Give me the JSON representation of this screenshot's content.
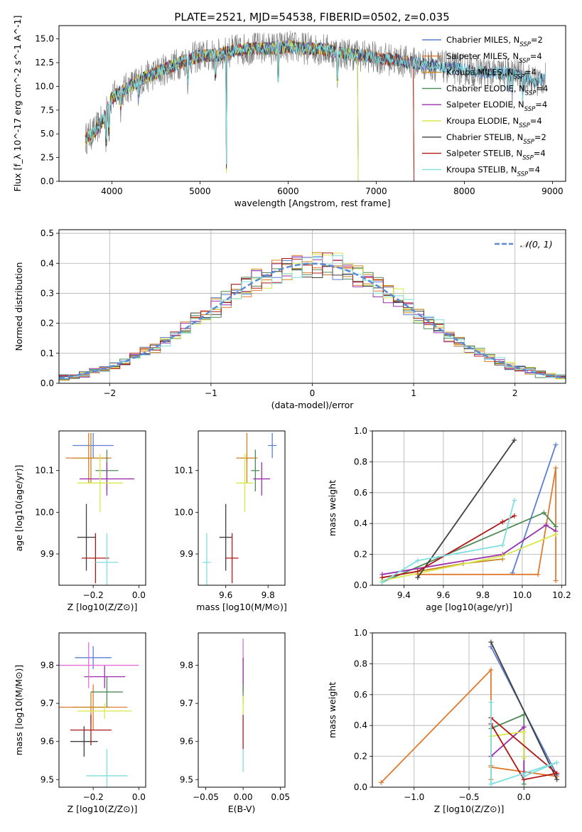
{
  "figure": {
    "title": "PLATE=2521, MJD=54538, FIBERID=0502, z=0.035"
  },
  "series": [
    {
      "name": "Chabrier MILES",
      "nssp": "2",
      "color": "#5b7fd6"
    },
    {
      "name": "Salpeter MILES",
      "nssp": "4",
      "color": "#e07a2f"
    },
    {
      "name": "Kroupa MILES",
      "nssp": "4",
      "color": "#c8861c"
    },
    {
      "name": "Chabrier ELODIE",
      "nssp": "4",
      "color": "#4e8a58"
    },
    {
      "name": "Salpeter ELODIE",
      "nssp": "4",
      "color": "#9b2fae"
    },
    {
      "name": "Kroupa ELODIE",
      "nssp": "4",
      "color": "#d8e848"
    },
    {
      "name": "Chabrier STELIB",
      "nssp": "2",
      "color": "#404040"
    },
    {
      "name": "Salpeter STELIB",
      "nssp": "4",
      "color": "#b01818"
    },
    {
      "name": "Kroupa STELIB",
      "nssp": "4",
      "color": "#7fdede"
    }
  ],
  "chart_data": [
    {
      "id": "spectrum",
      "type": "line",
      "xlabel": "wavelength [Angstrom, rest frame]",
      "ylabel": "Flux [f_λ 10^-17 erg cm^-2 s^-1 A^-1]",
      "xlim": [
        3400,
        9150
      ],
      "ylim": [
        0,
        16.4
      ],
      "xticks": [
        4000,
        5000,
        6000,
        7000,
        8000,
        9000
      ],
      "yticks": [
        0.0,
        2.5,
        5.0,
        7.5,
        10.0,
        12.5,
        15.0
      ],
      "legend": "right",
      "continuum": [
        [
          3700,
          4.5
        ],
        [
          3800,
          5.2
        ],
        [
          3900,
          6.5
        ],
        [
          4000,
          8.8
        ],
        [
          4200,
          10.0
        ],
        [
          4400,
          11.0
        ],
        [
          4600,
          11.8
        ],
        [
          4800,
          12.6
        ],
        [
          5000,
          13.2
        ],
        [
          5200,
          13.3
        ],
        [
          5400,
          13.8
        ],
        [
          5600,
          14.0
        ],
        [
          5800,
          14.0
        ],
        [
          6000,
          14.2
        ],
        [
          6200,
          14.0
        ],
        [
          6400,
          13.9
        ],
        [
          6600,
          13.5
        ],
        [
          6800,
          13.3
        ],
        [
          7000,
          13.0
        ],
        [
          7200,
          12.8
        ],
        [
          7400,
          12.5
        ],
        [
          7600,
          12.3
        ],
        [
          7800,
          12.0
        ],
        [
          8000,
          11.8
        ],
        [
          8200,
          11.5
        ],
        [
          8400,
          11.4
        ],
        [
          8600,
          11.3
        ],
        [
          8800,
          10.5
        ],
        [
          8900,
          10.8
        ]
      ],
      "cutoffs": {
        "Kroupa ELODIE": 6790,
        "Salpeter STELIB": 7420,
        "Salpeter MILES": 7420,
        "Kroupa MILES": 7420,
        "Chabrier ELODIE": 6790,
        "Salpeter ELODIE": 6790
      }
    },
    {
      "id": "residuals",
      "type": "line",
      "xlabel": "(data-model)/error",
      "ylabel": "Normed distribution",
      "xlim": [
        -2.5,
        2.5
      ],
      "ylim": [
        0,
        0.512
      ],
      "xticks": [
        -2,
        -1,
        0,
        1,
        2
      ],
      "yticks": [
        0.0,
        0.1,
        0.2,
        0.3,
        0.4,
        0.5
      ],
      "grid": true,
      "legend": "top-right",
      "curve_label": "𝒩(0, 1)",
      "curve_color": "#5b8ad6"
    },
    {
      "id": "z-age",
      "type": "scatter",
      "xlabel": "Z [log10(Z/Z⊙)]",
      "ylabel": "age [log10(age/yr)]",
      "xlim": [
        -0.35,
        0.03
      ],
      "ylim": [
        9.825,
        10.195
      ],
      "xticks": [
        -0.2,
        0.0
      ],
      "yticks": [
        9.9,
        10.0,
        10.1
      ],
      "points": [
        {
          "s": 0,
          "x": -0.2,
          "y": 10.16,
          "ex": 0.09,
          "ey": 0.03
        },
        {
          "s": 1,
          "x": -0.22,
          "y": 10.13,
          "ex": 0.1,
          "ey": 0.06
        },
        {
          "s": 2,
          "x": -0.21,
          "y": 10.13,
          "ex": 0.08,
          "ey": 0.06
        },
        {
          "s": 3,
          "x": -0.14,
          "y": 10.1,
          "ex": 0.05,
          "ey": 0.05
        },
        {
          "s": 4,
          "x": -0.14,
          "y": 10.08,
          "ex": 0.12,
          "ey": 0.04
        },
        {
          "s": 5,
          "x": -0.17,
          "y": 10.07,
          "ex": 0.1,
          "ey": 0.07
        },
        {
          "s": 6,
          "x": -0.23,
          "y": 9.94,
          "ex": 0.04,
          "ey": 0.08
        },
        {
          "s": 7,
          "x": -0.19,
          "y": 9.89,
          "ex": 0.06,
          "ey": 0.06
        },
        {
          "s": 8,
          "x": -0.14,
          "y": 9.88,
          "ex": 0.05,
          "ey": 0.07
        }
      ]
    },
    {
      "id": "mass-age",
      "type": "scatter",
      "xlabel": "mass [log10(M/M⊙)]",
      "ylabel": "",
      "xlim": [
        9.47,
        9.88
      ],
      "ylim": [
        9.825,
        10.195
      ],
      "xticks": [
        9.6,
        9.8
      ],
      "yticks": [
        9.9,
        10.0,
        10.1
      ],
      "points": [
        {
          "s": 0,
          "x": 9.82,
          "y": 10.16,
          "ex": 0.02,
          "ey": 0.03
        },
        {
          "s": 1,
          "x": 9.7,
          "y": 10.13,
          "ex": 0.05,
          "ey": 0.01
        },
        {
          "s": 2,
          "x": 9.7,
          "y": 10.13,
          "ex": 0.03,
          "ey": 0.06
        },
        {
          "s": 3,
          "x": 9.74,
          "y": 10.1,
          "ex": 0.02,
          "ey": 0.05
        },
        {
          "s": 4,
          "x": 9.77,
          "y": 10.08,
          "ex": 0.04,
          "ey": 0.04
        },
        {
          "s": 5,
          "x": 9.69,
          "y": 10.07,
          "ex": 0.04,
          "ey": 0.07
        },
        {
          "s": 6,
          "x": 9.6,
          "y": 9.94,
          "ex": 0.03,
          "ey": 0.08
        },
        {
          "s": 7,
          "x": 9.63,
          "y": 9.89,
          "ex": 0.03,
          "ey": 0.06
        },
        {
          "s": 8,
          "x": 9.51,
          "y": 9.88,
          "ex": 0.02,
          "ey": 0.07
        }
      ]
    },
    {
      "id": "age-weight",
      "type": "line",
      "xlabel": "age [log10(age/yr)]",
      "ylabel": "mass weight",
      "xlim": [
        9.24,
        10.22
      ],
      "ylim": [
        0,
        1.0
      ],
      "xticks": [
        9.4,
        9.6,
        9.8,
        10.0,
        10.2
      ],
      "yticks": [
        0.0,
        0.2,
        0.4,
        0.6,
        0.8,
        1.0
      ],
      "grid": true,
      "lines": [
        {
          "s": 0,
          "pts": [
            [
              9.95,
              0.08
            ],
            [
              10.17,
              0.91
            ]
          ]
        },
        {
          "s": 1,
          "pts": [
            [
              9.47,
              0.07
            ],
            [
              10.08,
              0.07
            ],
            [
              10.17,
              0.76
            ],
            [
              10.17,
              0.03
            ]
          ]
        },
        {
          "s": 2,
          "pts": [
            [
              9.29,
              0.05
            ],
            [
              9.7,
              0.14
            ],
            [
              9.9,
              0.17
            ]
          ]
        },
        {
          "s": 3,
          "pts": [
            [
              9.29,
              0.02
            ],
            [
              10.11,
              0.47
            ],
            [
              10.17,
              0.38
            ]
          ]
        },
        {
          "s": 4,
          "pts": [
            [
              9.29,
              0.07
            ],
            [
              9.9,
              0.2
            ],
            [
              10.12,
              0.39
            ],
            [
              10.17,
              0.35
            ]
          ]
        },
        {
          "s": 5,
          "pts": [
            [
              9.29,
              0.03
            ],
            [
              9.9,
              0.19
            ],
            [
              10.17,
              0.33
            ]
          ]
        },
        {
          "s": 6,
          "pts": [
            [
              9.47,
              0.05
            ],
            [
              9.96,
              0.94
            ]
          ]
        },
        {
          "s": 7,
          "pts": [
            [
              9.29,
              0.05
            ],
            [
              9.47,
              0.09
            ],
            [
              9.9,
              0.41
            ],
            [
              9.96,
              0.45
            ]
          ]
        },
        {
          "s": 8,
          "pts": [
            [
              9.29,
              0.02
            ],
            [
              9.47,
              0.16
            ],
            [
              9.9,
              0.26
            ],
            [
              9.96,
              0.55
            ]
          ]
        }
      ]
    },
    {
      "id": "z-mass",
      "type": "scatter",
      "xlabel": "Z [log10(Z/Z⊙)]",
      "ylabel": "mass [log10(M/M⊙)]",
      "xlim": [
        -0.35,
        0.03
      ],
      "ylim": [
        9.48,
        9.885
      ],
      "xticks": [
        -0.2,
        0.0
      ],
      "yticks": [
        9.5,
        9.6,
        9.7,
        9.8
      ],
      "points": [
        {
          "s": 0,
          "x": -0.2,
          "y": 9.82,
          "ex": 0.08,
          "ey": 0.03
        },
        {
          "s": 1,
          "x": -0.2,
          "y": 9.69,
          "ex": 0.15,
          "ey": 0.06
        },
        {
          "s": 2,
          "x": -0.21,
          "y": 9.69,
          "ex": 0.08,
          "ey": 0.04
        },
        {
          "s": 3,
          "x": -0.14,
          "y": 9.73,
          "ex": 0.07,
          "ey": 0.04
        },
        {
          "s": 4,
          "x": -0.15,
          "y": 9.77,
          "ex": 0.09,
          "ey": 0.03
        },
        {
          "s": 5,
          "x": -0.15,
          "y": 9.68,
          "ex": 0.12,
          "ey": 0.02
        },
        {
          "s": 6,
          "x": -0.24,
          "y": 9.6,
          "ex": 0.06,
          "ey": 0.04
        },
        {
          "s": 7,
          "x": -0.21,
          "y": 9.63,
          "ex": 0.09,
          "ey": 0.04
        },
        {
          "s": 8,
          "x": -0.14,
          "y": 9.51,
          "ex": 0.09,
          "ey": 0.07
        },
        {
          "s": 9,
          "x": -0.22,
          "y": 9.8,
          "ex": 0.22,
          "ey": 0.06
        }
      ]
    },
    {
      "id": "ebv-mass",
      "type": "scatter",
      "xlabel": "E(B-V)",
      "ylabel": "",
      "xlim": [
        -0.06,
        0.056
      ],
      "ylim": [
        9.48,
        9.885
      ],
      "xticks": [
        -0.05,
        0.0,
        0.05
      ],
      "yticks": [
        9.5,
        9.6,
        9.7,
        9.8
      ],
      "segments": [
        {
          "s": 9,
          "y1": 9.75,
          "y2": 9.87
        },
        {
          "s": 4,
          "y1": 9.73,
          "y2": 9.82
        },
        {
          "s": 3,
          "y1": 9.7,
          "y2": 9.75
        },
        {
          "s": 5,
          "y1": 9.67,
          "y2": 9.72
        },
        {
          "s": 7,
          "y1": 9.58,
          "y2": 9.67
        },
        {
          "s": 8,
          "y1": 9.52,
          "y2": 9.58
        }
      ]
    },
    {
      "id": "z-weight",
      "type": "line",
      "xlabel": "Z [log10(Z/Z⊙)]",
      "ylabel": "mass weight",
      "xlim": [
        -1.38,
        0.38
      ],
      "ylim": [
        0,
        1.0
      ],
      "xticks": [
        -1.0,
        -0.5,
        0.0
      ],
      "yticks": [
        0.0,
        0.2,
        0.4,
        0.6,
        0.8,
        1.0
      ],
      "grid": true,
      "lines": [
        {
          "s": 0,
          "pts": [
            [
              -0.3,
              0.91
            ],
            [
              0.3,
              0.08
            ]
          ]
        },
        {
          "s": 1,
          "pts": [
            [
              -1.3,
              0.03
            ],
            [
              -0.3,
              0.76
            ],
            [
              -0.3,
              0.13
            ],
            [
              0.3,
              0.07
            ]
          ]
        },
        {
          "s": 2,
          "pts": [
            [
              -0.3,
              0.05
            ],
            [
              -0.3,
              0.14
            ]
          ]
        },
        {
          "s": 3,
          "pts": [
            [
              -0.3,
              0.38
            ],
            [
              0.0,
              0.47
            ],
            [
              0.0,
              0.02
            ]
          ]
        },
        {
          "s": 4,
          "pts": [
            [
              -0.3,
              0.2
            ],
            [
              0.0,
              0.39
            ],
            [
              0.0,
              0.07
            ]
          ]
        },
        {
          "s": 5,
          "pts": [
            [
              -0.3,
              0.33
            ],
            [
              0.0,
              0.36
            ],
            [
              0.0,
              0.19
            ]
          ]
        },
        {
          "s": 6,
          "pts": [
            [
              -0.3,
              0.94
            ],
            [
              0.3,
              0.05
            ]
          ]
        },
        {
          "s": 7,
          "pts": [
            [
              -0.3,
              0.41
            ],
            [
              0.0,
              0.05
            ],
            [
              0.3,
              0.09
            ],
            [
              -0.3,
              0.45
            ]
          ]
        },
        {
          "s": 8,
          "pts": [
            [
              -0.3,
              0.55
            ],
            [
              -0.3,
              0.02
            ],
            [
              0.3,
              0.16
            ],
            [
              0.0,
              0.07
            ]
          ]
        }
      ]
    }
  ]
}
